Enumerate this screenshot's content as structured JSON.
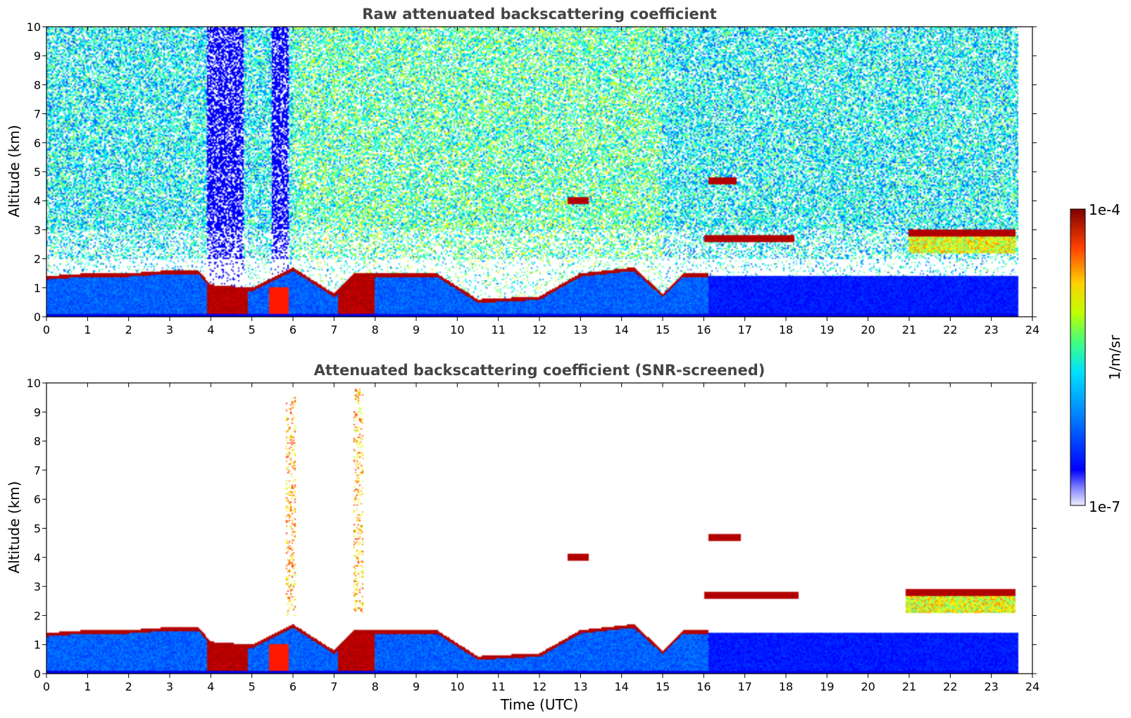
{
  "chart_data": [
    {
      "type": "heatmap",
      "title": "Raw attenuated backscattering coefficient",
      "xlabel": "",
      "ylabel": "Altitude (km)",
      "xlim": [
        0,
        24
      ],
      "ylim": [
        0,
        10
      ],
      "x_ticks": [
        "0",
        "1",
        "2",
        "3",
        "4",
        "5",
        "6",
        "7",
        "8",
        "9",
        "10",
        "11",
        "12",
        "13",
        "14",
        "15",
        "16",
        "17",
        "18",
        "19",
        "20",
        "21",
        "22",
        "23",
        "24"
      ],
      "y_ticks": [
        "0",
        "1",
        "2",
        "3",
        "4",
        "5",
        "6",
        "7",
        "8",
        "9",
        "10"
      ],
      "data_end_time": 23.65,
      "noise": {
        "base_altitude_km": 2.0,
        "dense_above_km": 3.0
      },
      "boundary_layer": [
        {
          "x": 0,
          "top": 1.4
        },
        {
          "x": 1,
          "top": 1.5
        },
        {
          "x": 2,
          "top": 1.5
        },
        {
          "x": 3,
          "top": 1.6
        },
        {
          "x": 3.7,
          "top": 1.6
        },
        {
          "x": 4.0,
          "top": 1.1
        },
        {
          "x": 5.0,
          "top": 1.0
        },
        {
          "x": 6.0,
          "top": 1.7
        },
        {
          "x": 7.0,
          "top": 0.8
        },
        {
          "x": 7.5,
          "top": 1.5
        },
        {
          "x": 8.5,
          "top": 1.5
        },
        {
          "x": 9.5,
          "top": 1.5
        },
        {
          "x": 10.5,
          "top": 0.6
        },
        {
          "x": 12.0,
          "top": 0.7
        },
        {
          "x": 13.0,
          "top": 1.5
        },
        {
          "x": 14.3,
          "top": 1.7
        },
        {
          "x": 15.0,
          "top": 0.8
        },
        {
          "x": 15.5,
          "top": 1.5
        },
        {
          "x": 16.0,
          "top": 1.5
        }
      ],
      "cloud_layers": [
        {
          "x_start": 16.1,
          "x_end": 16.8,
          "altitude_km": 4.7
        },
        {
          "x_start": 12.7,
          "x_end": 13.2,
          "altitude_km": 4.0
        },
        {
          "x_start": 16.0,
          "x_end": 18.2,
          "altitude_km": 2.7
        },
        {
          "x_start": 21.0,
          "x_end": 23.6,
          "altitude_km": 2.9
        }
      ]
    },
    {
      "type": "heatmap",
      "title": "Attenuated backscattering coefficient (SNR-screened)",
      "xlabel": "Time (UTC)",
      "ylabel": "Altitude (km)",
      "xlim": [
        0,
        24
      ],
      "ylim": [
        0,
        10
      ],
      "x_ticks": [
        "0",
        "1",
        "2",
        "3",
        "4",
        "5",
        "6",
        "7",
        "8",
        "9",
        "10",
        "11",
        "12",
        "13",
        "14",
        "15",
        "16",
        "17",
        "18",
        "19",
        "20",
        "21",
        "22",
        "23",
        "24"
      ],
      "y_ticks": [
        "0",
        "1",
        "2",
        "3",
        "4",
        "5",
        "6",
        "7",
        "8",
        "9",
        "10"
      ],
      "data_end_time": 23.65,
      "screened": true,
      "cloud_layers": [
        {
          "x_start": 16.1,
          "x_end": 16.9,
          "altitude_km": 4.7
        },
        {
          "x_start": 12.7,
          "x_end": 13.2,
          "altitude_km": 4.0
        },
        {
          "x_start": 16.0,
          "x_end": 18.3,
          "altitude_km": 2.7
        },
        {
          "x_start": 20.9,
          "x_end": 23.6,
          "altitude_km": 2.8
        }
      ],
      "plumes": [
        {
          "x": 5.95,
          "from_km": 2.0,
          "to_km": 9.5
        },
        {
          "x": 7.6,
          "from_km": 2.0,
          "to_km": 9.8
        }
      ]
    }
  ],
  "colorbar": {
    "min_label": "1e-7",
    "max_label": "1e-4",
    "label": "1/m/sr",
    "colormap": "jet"
  }
}
